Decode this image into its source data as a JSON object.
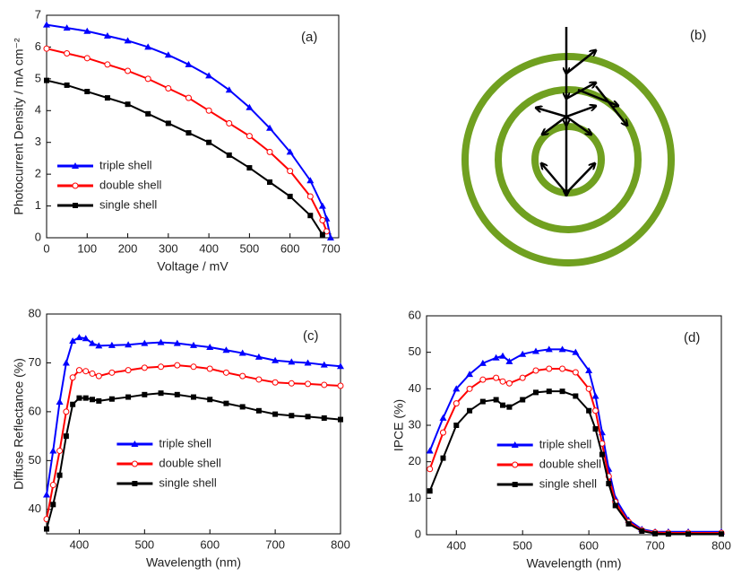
{
  "chart_data": [
    {
      "type": "line",
      "annotation": "(a)",
      "xlabel": "Voltage / mV",
      "ylabel": "Photocurrent Density / mA cm⁻²",
      "x": [
        0,
        50,
        100,
        150,
        200,
        250,
        300,
        350,
        400,
        450,
        500,
        550,
        600,
        650,
        680,
        690,
        700
      ],
      "xlim": [
        0,
        720
      ],
      "xticks": [
        0,
        100,
        200,
        300,
        400,
        500,
        600,
        700
      ],
      "ylim": [
        0,
        7
      ],
      "yticks": [
        0,
        1,
        2,
        3,
        4,
        5,
        6,
        7
      ],
      "legend": "lower left",
      "series": [
        {
          "name": "triple shell",
          "color": "#0000ff",
          "marker": "triangle",
          "values": [
            6.7,
            6.6,
            6.5,
            6.35,
            6.2,
            6.0,
            5.75,
            5.45,
            5.1,
            4.65,
            4.1,
            3.45,
            2.7,
            1.8,
            1.0,
            0.6,
            0
          ]
        },
        {
          "name": "double shell",
          "color": "#ff0000",
          "marker": "circle",
          "values": [
            5.95,
            5.8,
            5.65,
            5.45,
            5.25,
            5.0,
            4.7,
            4.4,
            4.0,
            3.6,
            3.2,
            2.7,
            2.1,
            1.3,
            0.55,
            0.2,
            null
          ]
        },
        {
          "name": "single shell",
          "color": "#000000",
          "marker": "square",
          "values": [
            4.95,
            4.8,
            4.6,
            4.4,
            4.2,
            3.9,
            3.6,
            3.3,
            3.0,
            2.6,
            2.2,
            1.75,
            1.3,
            0.7,
            0.1,
            null,
            null
          ]
        }
      ]
    },
    {
      "type": "line",
      "annotation": "(c)",
      "xlabel": "Wavelength (nm)",
      "ylabel": "Diffuse Reflectance (%)",
      "x": [
        350,
        360,
        370,
        380,
        390,
        400,
        410,
        420,
        430,
        450,
        475,
        500,
        525,
        550,
        575,
        600,
        625,
        650,
        675,
        700,
        725,
        750,
        775,
        800
      ],
      "xlim": [
        350,
        800
      ],
      "xticks": [
        400,
        500,
        600,
        700,
        800
      ],
      "ylim": [
        35,
        80
      ],
      "yticks": [
        40,
        50,
        60,
        70,
        80
      ],
      "legend": "lower center",
      "series": [
        {
          "name": "triple shell",
          "color": "#0000ff",
          "marker": "triangle",
          "values": [
            43,
            52,
            62,
            70,
            74.5,
            75.2,
            75,
            74,
            73.5,
            73.6,
            73.7,
            74,
            74.2,
            74,
            73.6,
            73.2,
            72.6,
            72,
            71.2,
            70.5,
            70.2,
            70,
            69.6,
            69.3
          ]
        },
        {
          "name": "double shell",
          "color": "#ff0000",
          "marker": "circle",
          "values": [
            38,
            45,
            52,
            60,
            67,
            68.5,
            68.3,
            67.8,
            67.3,
            68,
            68.5,
            69,
            69.2,
            69.5,
            69.2,
            68.8,
            68,
            67.3,
            66.6,
            66,
            65.8,
            65.7,
            65.5,
            65.3
          ]
        },
        {
          "name": "single shell",
          "color": "#000000",
          "marker": "square",
          "values": [
            36,
            41,
            47,
            55,
            61.5,
            62.8,
            62.8,
            62.5,
            62.2,
            62.6,
            63,
            63.5,
            63.8,
            63.5,
            63,
            62.5,
            61.7,
            61,
            60.2,
            59.5,
            59.2,
            59,
            58.7,
            58.4
          ]
        }
      ]
    },
    {
      "type": "line",
      "annotation": "(d)",
      "xlabel": "Wavelength (nm)",
      "ylabel": "IPCE (%)",
      "x": [
        360,
        380,
        400,
        420,
        440,
        460,
        470,
        480,
        500,
        520,
        540,
        560,
        580,
        600,
        610,
        620,
        630,
        640,
        660,
        680,
        700,
        720,
        750,
        800
      ],
      "xlim": [
        355,
        800
      ],
      "xticks": [
        400,
        500,
        600,
        700,
        800
      ],
      "ylim": [
        0,
        60
      ],
      "yticks": [
        0,
        10,
        20,
        30,
        40,
        50,
        60
      ],
      "legend": "lower center",
      "series": [
        {
          "name": "triple shell",
          "color": "#0000ff",
          "marker": "triangle",
          "values": [
            23,
            32,
            40,
            44,
            47,
            48.5,
            49,
            47.5,
            49.5,
            50.3,
            50.8,
            50.8,
            50,
            45,
            38,
            28,
            18,
            10,
            4,
            1.5,
            0.8,
            0.8,
            0.8,
            0.8
          ]
        },
        {
          "name": "double shell",
          "color": "#ff0000",
          "marker": "circle",
          "values": [
            18,
            28,
            36,
            40,
            42.5,
            43,
            42,
            41.5,
            43,
            45,
            45.5,
            45.5,
            44.5,
            40,
            34,
            25,
            16,
            9,
            3.5,
            1.2,
            0.6,
            0.5,
            0.5,
            0.5
          ]
        },
        {
          "name": "single shell",
          "color": "#000000",
          "marker": "square",
          "values": [
            12,
            21,
            30,
            34,
            36.5,
            37,
            35.5,
            35,
            37,
            39,
            39.3,
            39.3,
            38,
            34,
            29,
            22,
            14,
            8,
            3,
            1,
            0.3,
            0.2,
            0.2,
            0.2
          ]
        }
      ]
    }
  ],
  "diagram": {
    "label": "(b)"
  }
}
